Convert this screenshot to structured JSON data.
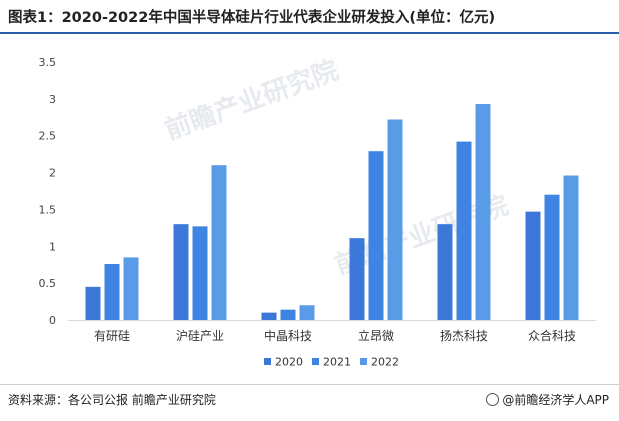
{
  "title": "图表1：2020-2022年中国半导体硅片行业代表企业研发投入(单位：亿元)",
  "source": "资料来源：各公司公报 前瞻产业研究院",
  "brand": "@前瞻经济学人APP",
  "watermark": "前瞻产业研究院",
  "colors": {
    "2020": "#3b78d8",
    "2021": "#3f83e3",
    "2022": "#5a9be8",
    "axis": "#d9d9d9",
    "tick_text": "#444444"
  },
  "chart_data": {
    "type": "bar",
    "title": "",
    "xlabel": "",
    "ylabel": "",
    "ylim": [
      0,
      3.5
    ],
    "yticks": [
      "0",
      "0.5",
      "1",
      "1.5",
      "2",
      "2.5",
      "3",
      "3.5"
    ],
    "grid": false,
    "legend": "bottom-center",
    "categories": [
      "有研硅",
      "沪硅产业",
      "中晶科技",
      "立昂微",
      "扬杰科技",
      "众合科技"
    ],
    "series": [
      {
        "name": "2020",
        "values": [
          0.45,
          1.3,
          0.1,
          1.11,
          1.3,
          1.47
        ]
      },
      {
        "name": "2021",
        "values": [
          0.76,
          1.27,
          0.14,
          2.29,
          2.42,
          1.7
        ]
      },
      {
        "name": "2022",
        "values": [
          0.85,
          2.1,
          0.2,
          2.72,
          2.93,
          1.96
        ]
      }
    ]
  }
}
